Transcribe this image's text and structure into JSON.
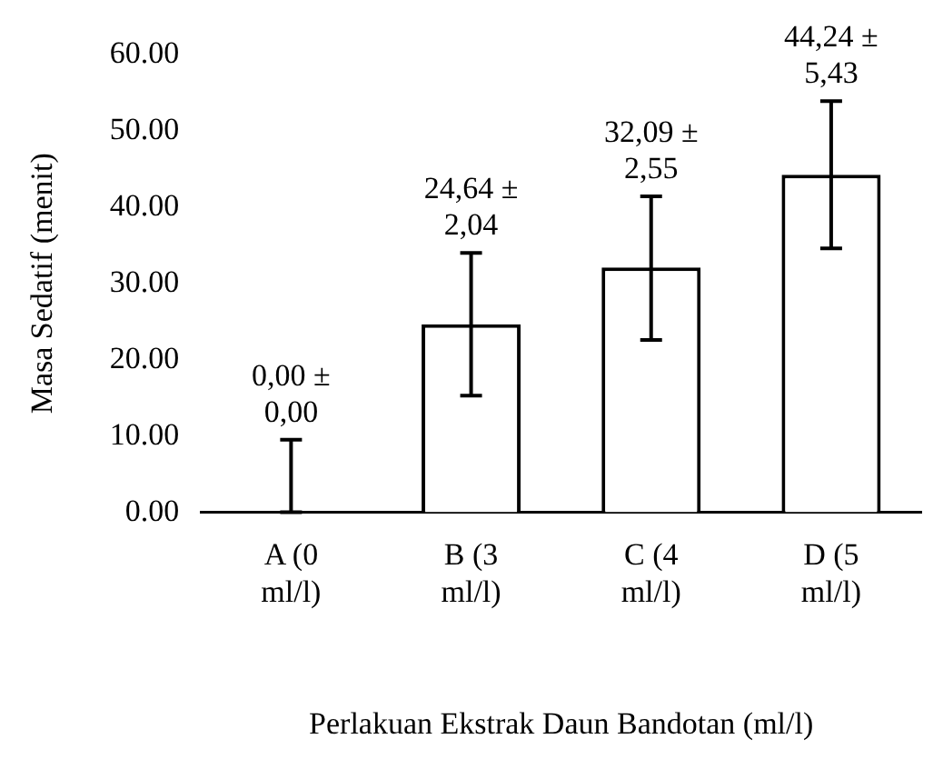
{
  "chart_data": {
    "type": "bar",
    "categories": [
      "A (0 ml/l)",
      "B (3 ml/l)",
      "C (4 ml/l)",
      "D (5 ml/l)"
    ],
    "values": [
      0,
      24.64,
      32.09,
      44.24
    ],
    "value_labels": [
      "0,00 ± 0,00",
      "24,64 ± 2,04",
      "32,09 ± 2,55",
      "44,24 ± 5,43"
    ],
    "errors": [
      [
        0,
        9.5
      ],
      [
        15.3,
        34
      ],
      [
        22.6,
        41.4
      ],
      [
        34.6,
        53.9
      ]
    ],
    "color": "#ffffff",
    "ylabel": "Masa Sedatif (menit)",
    "xlabel": "Perlakuan Ekstrak Daun Bandotan (ml/l)",
    "ylim": [
      0,
      60
    ],
    "yticks": [
      {
        "value": 0,
        "label": "0.00"
      },
      {
        "value": 10,
        "label": "10.00"
      },
      {
        "value": 20,
        "label": "20.00"
      },
      {
        "value": 30,
        "label": "30.00"
      },
      {
        "value": 40,
        "label": "40.00"
      },
      {
        "value": 50,
        "label": "50.00"
      },
      {
        "value": 60,
        "label": "60.00"
      }
    ],
    "grid": false,
    "legend": false
  }
}
